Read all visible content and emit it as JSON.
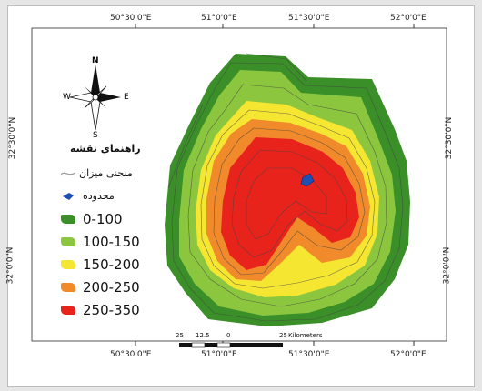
{
  "legend": {
    "title": "راهنمای نقشه",
    "items": [
      {
        "label": "منحنی میزان",
        "kind": "line",
        "color": "#9b9b9b"
      },
      {
        "label": "محدوده",
        "kind": "marker",
        "color": "#1f4fb3"
      },
      {
        "label": "0-100",
        "kind": "class",
        "color": "#3a8f28"
      },
      {
        "label": "100-150",
        "kind": "class",
        "color": "#8cc63f"
      },
      {
        "label": "150-200",
        "kind": "class",
        "color": "#f5e631"
      },
      {
        "label": "200-250",
        "kind": "class",
        "color": "#f08a2b"
      },
      {
        "label": "250-350",
        "kind": "class",
        "color": "#e8231c"
      }
    ]
  },
  "axes": {
    "top": [
      "50°30'0\"E",
      "51°0'0\"E",
      "51°30'0\"E",
      "52°0'0\"E"
    ],
    "bottom": [
      "50°30'0\"E",
      "51°0'0\"E",
      "51°30'0\"E",
      "52°0'0\"E"
    ],
    "left": [
      "32°30'0\"N",
      "32°0'0\"N"
    ],
    "right": [
      "32°30'0\"N",
      "32°0'0\"N"
    ]
  },
  "north_arrow": {
    "n": "N",
    "s": "S",
    "e": "E",
    "w": "W"
  },
  "scale_bar": {
    "labels": [
      "25",
      "12.5",
      "0",
      "25"
    ],
    "unit": "Kilometers"
  },
  "colors": {
    "zone_0_100": "#3a8f28",
    "zone_100_150": "#8cc63f",
    "zone_150_200": "#f5e631",
    "zone_200_250": "#f08a2b",
    "zone_250_350": "#e8231c",
    "study_area_marker": "#1f4fb3"
  }
}
